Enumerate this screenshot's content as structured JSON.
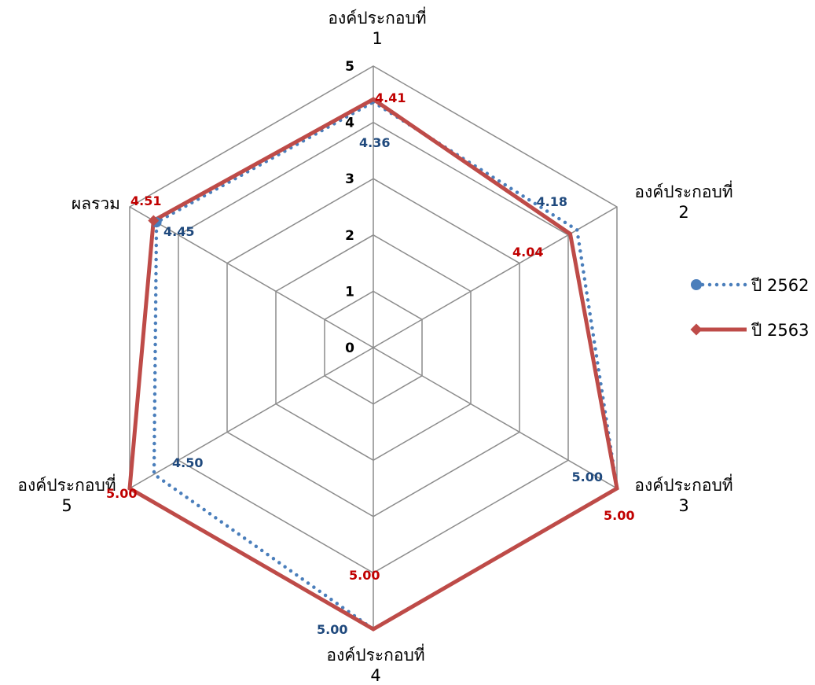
{
  "chart_data": {
    "type": "radar",
    "categories": [
      [
        "องค์ประกอบที่",
        "1"
      ],
      [
        "องค์ประกอบที่",
        "2"
      ],
      [
        "องค์ประกอบที่",
        "3"
      ],
      [
        "องค์ประกอบที่",
        "4"
      ],
      [
        "องค์ประกอบที่",
        "5"
      ],
      [
        "ผลรวม"
      ]
    ],
    "rlim": [
      0,
      5
    ],
    "ticks": [
      "0",
      "1",
      "2",
      "3",
      "4",
      "5"
    ],
    "grid": true,
    "legend_position": "right",
    "series": [
      {
        "name": "ปี 2562",
        "values": [
          4.36,
          4.18,
          5.0,
          5.0,
          4.5,
          4.45
        ],
        "labels": [
          "4.36",
          "4.18",
          "5.00",
          "5.00",
          "4.50",
          "4.45"
        ],
        "color": "#4a7ebb",
        "label_color": "#1f497d",
        "line_style": "dotted",
        "marker": "circle"
      },
      {
        "name": "ปี 2563",
        "values": [
          4.41,
          4.04,
          5.0,
          5.0,
          5.0,
          4.51
        ],
        "labels": [
          "4.41",
          "4.04",
          "5.00",
          "5.00",
          "5.00",
          "4.51"
        ],
        "color": "#be4b48",
        "label_color": "#c00000",
        "line_style": "solid",
        "marker": "diamond"
      }
    ]
  }
}
